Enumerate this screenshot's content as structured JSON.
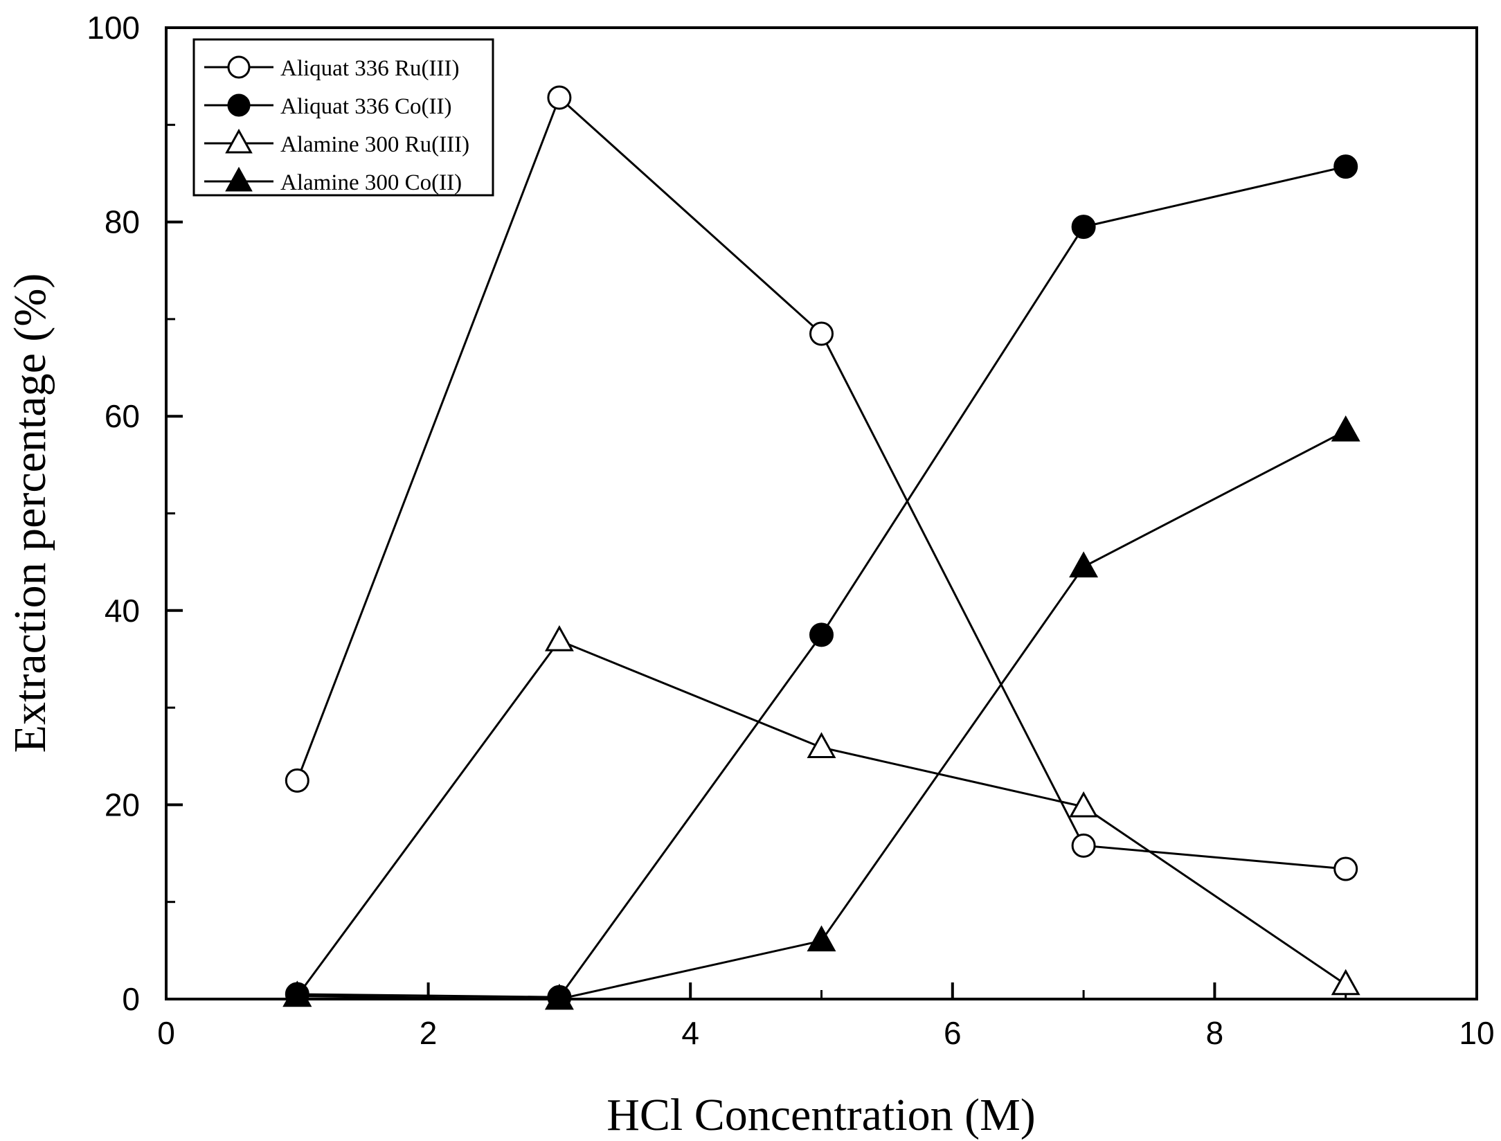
{
  "chart_data": {
    "type": "line",
    "xlabel": "HCl Concentration (M)",
    "ylabel": "Extraction percentage (%)",
    "xlim": [
      0,
      10
    ],
    "ylim": [
      0,
      100
    ],
    "x_ticks": [
      0,
      2,
      4,
      6,
      8,
      10
    ],
    "y_ticks": [
      0,
      20,
      40,
      60,
      80,
      100
    ],
    "x_tick_labels": [
      "0",
      "2",
      "4",
      "6",
      "8",
      "10"
    ],
    "y_tick_labels": [
      "0",
      "20",
      "40",
      "60",
      "80",
      "100"
    ],
    "grid": false,
    "legend_position": "top-left",
    "series": [
      {
        "name": "Aliquat 336 Ru(III)",
        "marker": "circle-open",
        "x": [
          1,
          3,
          5,
          7,
          9
        ],
        "values": [
          22.5,
          92.8,
          68.5,
          15.8,
          13.4
        ]
      },
      {
        "name": "Aliquat 336 Co(II)",
        "marker": "circle-filled",
        "x": [
          1,
          3,
          5,
          7,
          9
        ],
        "values": [
          0.5,
          0.2,
          37.5,
          79.5,
          85.7
        ]
      },
      {
        "name": "Alamine 300 Ru(III)",
        "marker": "triangle-open",
        "x": [
          1,
          3,
          5,
          7,
          9
        ],
        "values": [
          0.3,
          36.9,
          25.9,
          19.8,
          1.5
        ]
      },
      {
        "name": "Alamine 300 Co(II)",
        "marker": "triangle-filled",
        "x": [
          1,
          3,
          5,
          7,
          9
        ],
        "values": [
          0.3,
          0.0,
          6.0,
          44.5,
          58.5
        ]
      }
    ]
  }
}
